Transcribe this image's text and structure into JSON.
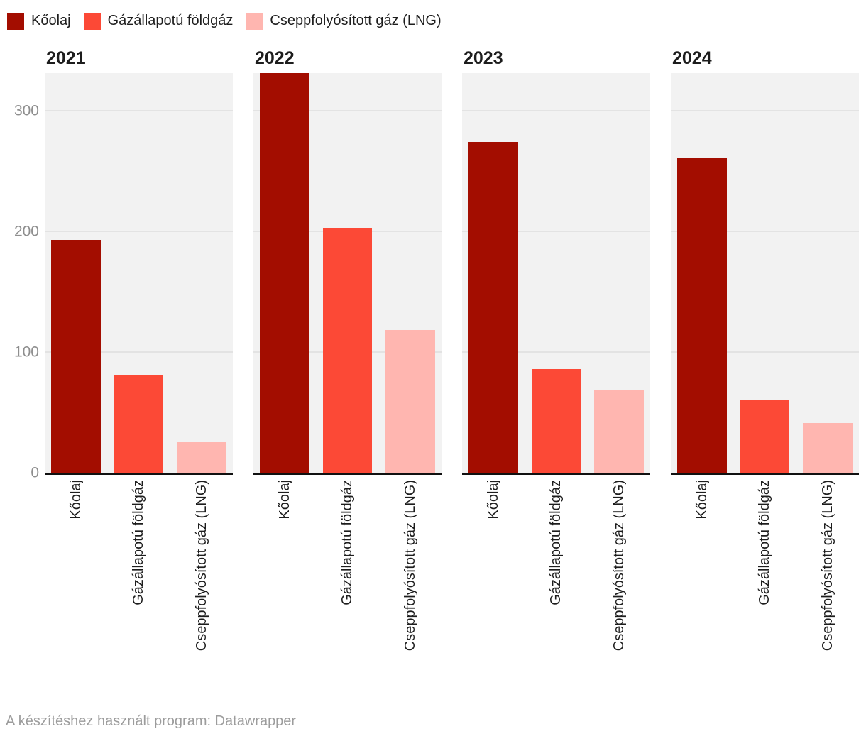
{
  "legend": {
    "items": [
      {
        "label": "Kőolaj",
        "color": "#a30d00"
      },
      {
        "label": "Gázállapotú földgáz",
        "color": "#fc4936"
      },
      {
        "label": "Cseppfolyósított gáz (LNG)",
        "color": "#ffb6b0"
      }
    ]
  },
  "chart_data": {
    "type": "bar",
    "layout": "small-multiples",
    "categories": [
      "Kőolaj",
      "Gázállapotú földgáz",
      "Cseppfolyósított gáz (LNG)"
    ],
    "series_colors": [
      "#a30d00",
      "#fc4936",
      "#ffb6b0"
    ],
    "panels": [
      {
        "title": "2021",
        "values": [
          193,
          81,
          25
        ]
      },
      {
        "title": "2022",
        "values": [
          331,
          203,
          118
        ]
      },
      {
        "title": "2023",
        "values": [
          274,
          86,
          68
        ]
      },
      {
        "title": "2024",
        "values": [
          261,
          60,
          41
        ]
      }
    ],
    "ylim": [
      0,
      331
    ],
    "yticks": [
      0,
      100,
      200,
      300
    ],
    "grid": true,
    "legend_position": "top"
  },
  "footer": {
    "text": "A készítéshez használt program: Datawrapper"
  }
}
